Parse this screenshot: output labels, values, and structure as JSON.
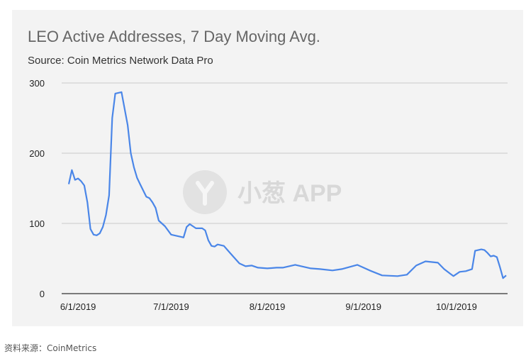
{
  "chart_data": {
    "type": "line",
    "title": "LEO Active Addresses, 7 Day Moving Avg.",
    "subtitle": "Source: Coin Metrics Network Data Pro",
    "xlabel": "",
    "ylabel": "",
    "ylim": [
      0,
      300
    ],
    "yticks": [
      0,
      100,
      200,
      300
    ],
    "xticks": [
      "6/1/2019",
      "7/1/2019",
      "8/1/2019",
      "9/1/2019",
      "10/1/2019"
    ],
    "xrange": [
      "2019-05-29",
      "2019-10-17"
    ],
    "grid": true,
    "legend": "none",
    "line_color": "#4a86e8",
    "series": [
      {
        "x": [
          "2019-05-29",
          "2019-05-30",
          "2019-05-31",
          "2019-06-01",
          "2019-06-02",
          "2019-06-03",
          "2019-06-04",
          "2019-06-05",
          "2019-06-06",
          "2019-06-07",
          "2019-06-08",
          "2019-06-09",
          "2019-06-10",
          "2019-06-11",
          "2019-06-12",
          "2019-06-13",
          "2019-06-15",
          "2019-06-17",
          "2019-06-18",
          "2019-06-19",
          "2019-06-20",
          "2019-06-21",
          "2019-06-23",
          "2019-06-24",
          "2019-06-25",
          "2019-06-26",
          "2019-06-27",
          "2019-06-29",
          "2019-07-01",
          "2019-07-03",
          "2019-07-05",
          "2019-07-06",
          "2019-07-07",
          "2019-07-09",
          "2019-07-11",
          "2019-07-12",
          "2019-07-13",
          "2019-07-14",
          "2019-07-15",
          "2019-07-16",
          "2019-07-18",
          "2019-07-20",
          "2019-07-22",
          "2019-07-23",
          "2019-07-25",
          "2019-07-27",
          "2019-07-29",
          "2019-08-01",
          "2019-08-04",
          "2019-08-06",
          "2019-08-10",
          "2019-08-15",
          "2019-08-18",
          "2019-08-22",
          "2019-08-25",
          "2019-08-30",
          "2019-09-03",
          "2019-09-07",
          "2019-09-12",
          "2019-09-15",
          "2019-09-18",
          "2019-09-21",
          "2019-09-25",
          "2019-09-27",
          "2019-09-30",
          "2019-10-02",
          "2019-10-04",
          "2019-10-06",
          "2019-10-07",
          "2019-10-09",
          "2019-10-10",
          "2019-10-11",
          "2019-10-12",
          "2019-10-13",
          "2019-10-14",
          "2019-10-15",
          "2019-10-16",
          "2019-10-17"
        ],
        "y": [
          156,
          176,
          162,
          164,
          160,
          154,
          130,
          92,
          84,
          83,
          86,
          95,
          112,
          140,
          250,
          285,
          287,
          240,
          200,
          180,
          165,
          156,
          138,
          136,
          130,
          122,
          104,
          96,
          84,
          82,
          80,
          95,
          99,
          93,
          93,
          90,
          76,
          68,
          67,
          70,
          68,
          58,
          48,
          43,
          39,
          40,
          37,
          36,
          37,
          37,
          41,
          36,
          35,
          33,
          35,
          41,
          33,
          26,
          25,
          27,
          40,
          46,
          44,
          35,
          25,
          31,
          32,
          35,
          61,
          63,
          62,
          58,
          53,
          54,
          52,
          38,
          22,
          26
        ]
      }
    ]
  },
  "watermark": {
    "text": "小葱 APP"
  },
  "caption": "资料来源：CoinMetrics"
}
